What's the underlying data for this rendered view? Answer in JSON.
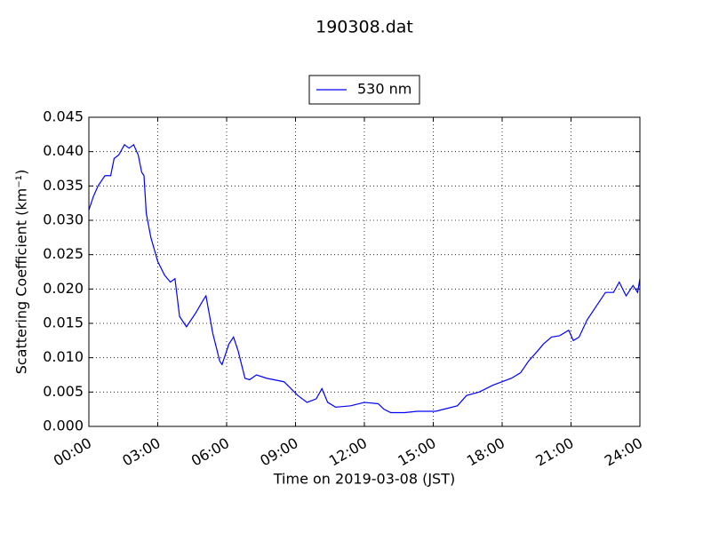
{
  "chart_data": {
    "type": "line",
    "title": "190308.dat",
    "xlabel": "Time on 2019-03-08 (JST)",
    "ylabel": "Scattering Coefficient (km⁻¹)",
    "x": [
      0,
      0.2,
      0.4,
      0.7,
      0.95,
      1.1,
      1.3,
      1.55,
      1.75,
      1.95,
      2.15,
      2.3,
      2.4,
      2.5,
      2.7,
      3.0,
      3.3,
      3.55,
      3.75,
      3.95,
      4.25,
      4.65,
      5.0,
      5.1,
      5.4,
      5.7,
      5.8,
      6.1,
      6.3,
      6.5,
      6.8,
      7.0,
      7.3,
      7.75,
      8.5,
      9.1,
      9.5,
      9.9,
      10.15,
      10.4,
      10.75,
      11.4,
      12.0,
      12.6,
      12.85,
      13.15,
      13.75,
      14.3,
      15.1,
      15.7,
      16.05,
      16.45,
      17.0,
      17.6,
      18.0,
      18.4,
      18.8,
      19.15,
      19.55,
      19.8,
      20.15,
      20.5,
      20.9,
      21.1,
      21.35,
      21.7,
      22.1,
      22.5,
      22.85,
      23.1,
      23.4,
      23.7,
      23.9,
      24.0
    ],
    "series": [
      {
        "name": "530 nm",
        "color": "#0000ff",
        "values": [
          0.0315,
          0.0335,
          0.035,
          0.0365,
          0.0365,
          0.039,
          0.0395,
          0.041,
          0.0405,
          0.041,
          0.0395,
          0.037,
          0.0365,
          0.031,
          0.0275,
          0.024,
          0.022,
          0.021,
          0.0215,
          0.016,
          0.0145,
          0.0165,
          0.0185,
          0.019,
          0.0135,
          0.0095,
          0.009,
          0.012,
          0.013,
          0.011,
          0.007,
          0.0068,
          0.0075,
          0.007,
          0.0065,
          0.0045,
          0.0035,
          0.004,
          0.0055,
          0.0035,
          0.0028,
          0.003,
          0.0035,
          0.0033,
          0.0025,
          0.002,
          0.002,
          0.0022,
          0.0022,
          0.0027,
          0.003,
          0.0045,
          0.005,
          0.006,
          0.0065,
          0.007,
          0.0078,
          0.0095,
          0.011,
          0.012,
          0.013,
          0.0132,
          0.014,
          0.0125,
          0.013,
          0.0155,
          0.0175,
          0.0195,
          0.0195,
          0.021,
          0.019,
          0.0205,
          0.0195,
          0.0215
        ]
      }
    ],
    "xlim": [
      0,
      24
    ],
    "xticks": [
      {
        "value": 0,
        "label": "00:00"
      },
      {
        "value": 3,
        "label": "03:00"
      },
      {
        "value": 6,
        "label": "06:00"
      },
      {
        "value": 9,
        "label": "09:00"
      },
      {
        "value": 12,
        "label": "12:00"
      },
      {
        "value": 15,
        "label": "15:00"
      },
      {
        "value": 18,
        "label": "18:00"
      },
      {
        "value": 21,
        "label": "21:00"
      },
      {
        "value": 24,
        "label": "24:00"
      }
    ],
    "ylim": [
      0,
      0.045
    ],
    "yticks": [
      {
        "value": 0,
        "label": "0.000"
      },
      {
        "value": 0.005,
        "label": "0.005"
      },
      {
        "value": 0.01,
        "label": "0.010"
      },
      {
        "value": 0.015,
        "label": "0.015"
      },
      {
        "value": 0.02,
        "label": "0.020"
      },
      {
        "value": 0.025,
        "label": "0.025"
      },
      {
        "value": 0.03,
        "label": "0.030"
      },
      {
        "value": 0.035,
        "label": "0.035"
      },
      {
        "value": 0.04,
        "label": "0.040"
      },
      {
        "value": 0.045,
        "label": "0.045"
      }
    ],
    "grid": true,
    "legend": "upper center"
  }
}
